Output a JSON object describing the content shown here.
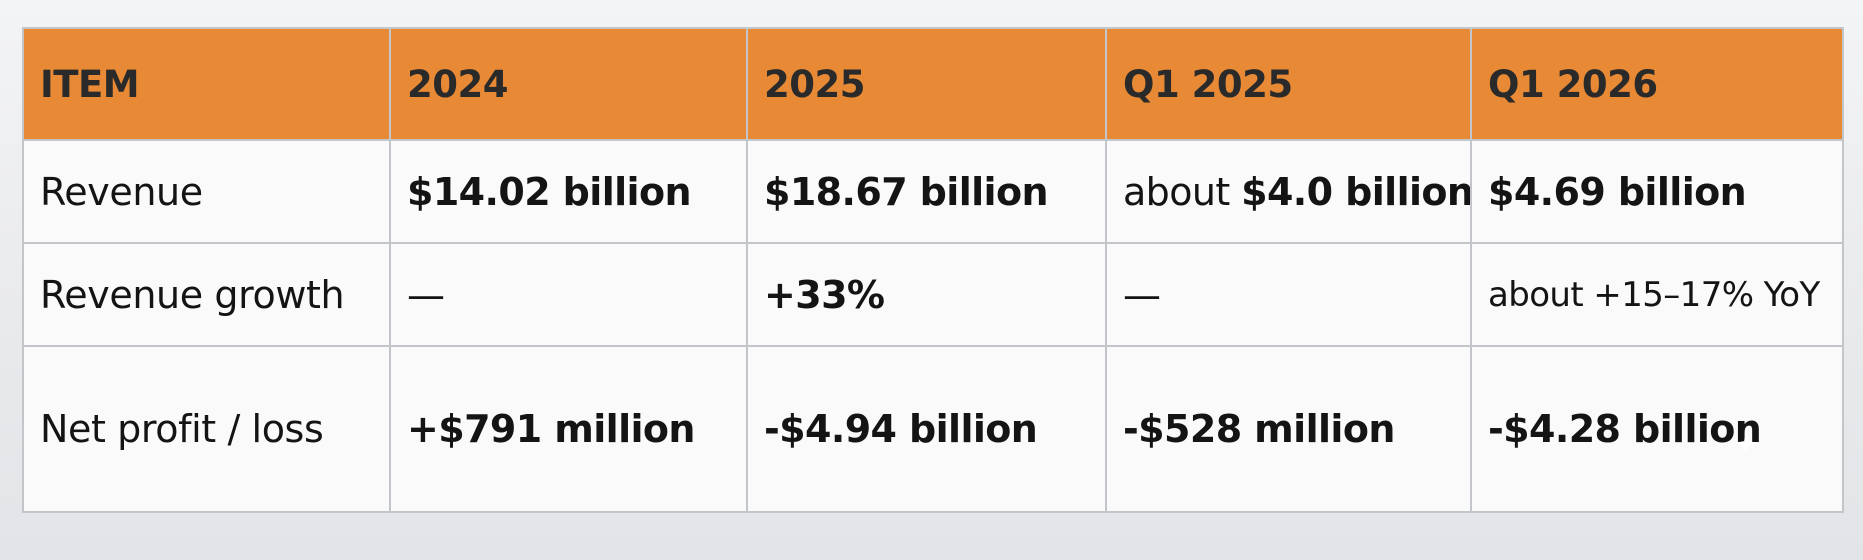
{
  "chart_data": {
    "type": "table",
    "columns": [
      "ITEM",
      "2024",
      "2025",
      "Q1 2025",
      "Q1 2026"
    ],
    "rows": [
      {
        "item": "Revenue",
        "cells": [
          {
            "text": "$14.02 billion"
          },
          {
            "text": "$18.67 billion"
          },
          {
            "prefix": "about ",
            "text": "$4.0 billion"
          },
          {
            "text": "$4.69 billion"
          }
        ]
      },
      {
        "item": "Revenue growth",
        "cells": [
          {
            "text": "—"
          },
          {
            "text": "+33%"
          },
          {
            "text": "—"
          },
          {
            "text": "about +15–17% YoY"
          }
        ]
      },
      {
        "item": "Net profit / loss",
        "cells": [
          {
            "text": "+$791 million"
          },
          {
            "text": "-$4.94 billion"
          },
          {
            "text": "-$528 million"
          },
          {
            "text": "-$4.28 billion"
          }
        ]
      }
    ]
  },
  "colors": {
    "header_background": "#e88a35",
    "header_text": "#2a2a2a",
    "cell_background": "#fafafa",
    "grid_lines": "#c2c5c9"
  }
}
